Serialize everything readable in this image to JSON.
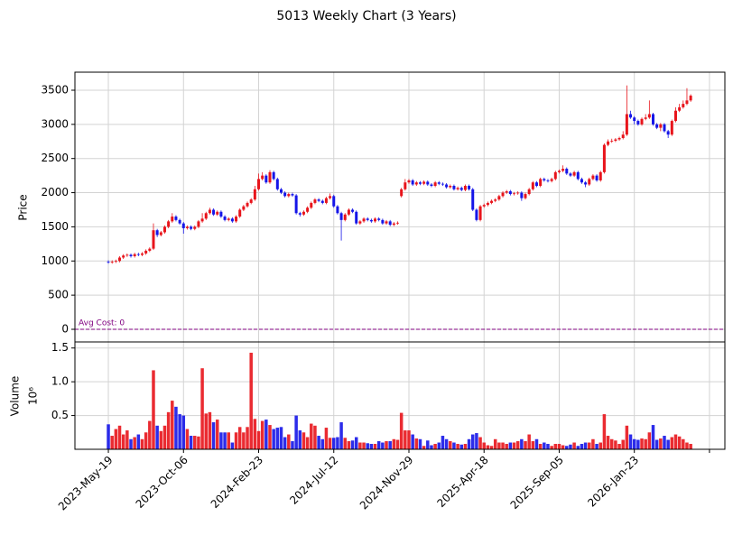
{
  "chart_data": {
    "type": "candlestick",
    "title": "5013 Weekly Chart (3 Years)",
    "ylabel": "Price",
    "up_color": "#e8141b",
    "down_color": "#1515e8",
    "grid": true,
    "xlim": [
      -8.9,
      164.1
    ],
    "xticks": [
      {
        "value": 0,
        "label": "2023-May-19"
      },
      {
        "value": 20,
        "label": "2023-Oct-06"
      },
      {
        "value": 40,
        "label": "2024-Feb-23"
      },
      {
        "value": 60,
        "label": "2024-Jul-12"
      },
      {
        "value": 80,
        "label": "2024-Nov-29"
      },
      {
        "value": 100,
        "label": "2025-Apr-18"
      },
      {
        "value": 120,
        "label": "2025-Sep-05"
      },
      {
        "value": 140,
        "label": "2026-Jan-23"
      },
      {
        "value": 160,
        "label": null
      }
    ],
    "ylim": [
      -185,
      3764
    ],
    "yticks": [
      0,
      500,
      1000,
      1500,
      2000,
      2500,
      3000,
      3500
    ],
    "hline": {
      "value": 0,
      "label": "Avg Cost: 0",
      "color": "#800080"
    },
    "open": [
      990,
      980,
      990,
      1000,
      1050,
      1080,
      1090,
      1070,
      1100,
      1090,
      1110,
      1150,
      1180,
      1450,
      1380,
      1420,
      1500,
      1580,
      1650,
      1600,
      1550,
      1480,
      1500,
      1470,
      1500,
      1580,
      1620,
      1700,
      1750,
      1680,
      1720,
      1650,
      1600,
      1620,
      1580,
      1650,
      1750,
      1800,
      1850,
      1900,
      2050,
      2200,
      2250,
      2150,
      2300,
      2200,
      2050,
      2000,
      1950,
      1980,
      1960,
      1700,
      1680,
      1720,
      1780,
      1850,
      1900,
      1880,
      1850,
      1920,
      1950,
      1800,
      1700,
      1600,
      1680,
      1750,
      1720,
      1550,
      1580,
      1620,
      1600,
      1580,
      1620,
      1600,
      1550,
      1580,
      1530,
      1550,
      1950,
      2050,
      2150,
      2180,
      2120,
      2150,
      2130,
      2160,
      2120,
      2100,
      2150,
      2130,
      2120,
      2080,
      2100,
      2050,
      2070,
      2040,
      2100,
      2050,
      1750,
      1600,
      1800,
      1820,
      1850,
      1880,
      1900,
      1950,
      2000,
      2020,
      1980,
      1990,
      2000,
      1920,
      1980,
      2050,
      2150,
      2100,
      2200,
      2180,
      2170,
      2200,
      2300,
      2320,
      2350,
      2280,
      2250,
      2300,
      2200,
      2150,
      2120,
      2200,
      2250,
      2180,
      2300,
      2700,
      2750,
      2760,
      2780,
      2800,
      2850,
      3150,
      3100,
      3050,
      3000,
      3080,
      3100,
      3150,
      3000,
      2950,
      3000,
      2900,
      2850,
      3050,
      3200,
      3250,
      3300,
      3350
    ],
    "high": [
      1010,
      1010,
      1020,
      1070,
      1100,
      1110,
      1110,
      1120,
      1120,
      1130,
      1170,
      1200,
      1550,
      1470,
      1440,
      1520,
      1600,
      1700,
      1670,
      1620,
      1570,
      1520,
      1520,
      1520,
      1600,
      1700,
      1720,
      1780,
      1770,
      1740,
      1740,
      1670,
      1640,
      1640,
      1670,
      1770,
      1820,
      1870,
      1920,
      2100,
      2280,
      2300,
      2270,
      2330,
      2320,
      2220,
      2070,
      2020,
      2000,
      2000,
      1980,
      1720,
      1740,
      1800,
      1870,
      1920,
      1920,
      1900,
      1940,
      1990,
      1970,
      1820,
      1720,
      1700,
      1770,
      1770,
      1740,
      1600,
      1640,
      1640,
      1620,
      1640,
      1640,
      1620,
      1600,
      1600,
      1570,
      1580,
      2070,
      2200,
      2200,
      2200,
      2170,
      2170,
      2180,
      2180,
      2140,
      2170,
      2170,
      2150,
      2140,
      2120,
      2120,
      2090,
      2090,
      2120,
      2120,
      2070,
      1770,
      1820,
      1840,
      1870,
      1900,
      1920,
      1970,
      2020,
      2040,
      2040,
      2010,
      2020,
      2020,
      2000,
      2070,
      2170,
      2170,
      2220,
      2220,
      2200,
      2220,
      2320,
      2340,
      2400,
      2370,
      2300,
      2320,
      2320,
      2220,
      2170,
      2220,
      2270,
      2270,
      2320,
      2720,
      2780,
      2790,
      2800,
      2820,
      2900,
      3570,
      3200,
      3120,
      3070,
      3100,
      3150,
      3350,
      3170,
      3020,
      3020,
      3020,
      2920,
      3070,
      3250,
      3300,
      3350,
      3530,
      3440
    ],
    "low": [
      960,
      960,
      970,
      980,
      1030,
      1060,
      1050,
      1050,
      1070,
      1070,
      1090,
      1130,
      1160,
      1350,
      1360,
      1400,
      1480,
      1560,
      1580,
      1530,
      1400,
      1460,
      1450,
      1450,
      1480,
      1560,
      1600,
      1680,
      1660,
      1660,
      1630,
      1580,
      1580,
      1560,
      1560,
      1630,
      1730,
      1780,
      1830,
      1880,
      2030,
      2180,
      2130,
      2130,
      2180,
      2030,
      1980,
      1930,
      1930,
      1940,
      1680,
      1650,
      1660,
      1700,
      1760,
      1830,
      1860,
      1830,
      1830,
      1900,
      1780,
      1680,
      1300,
      1580,
      1660,
      1700,
      1530,
      1530,
      1560,
      1580,
      1560,
      1560,
      1580,
      1530,
      1530,
      1510,
      1510,
      1530,
      1930,
      2030,
      2130,
      2100,
      2100,
      2110,
      2110,
      2100,
      2080,
      2080,
      2110,
      2100,
      2060,
      2060,
      2030,
      2030,
      2020,
      2020,
      2030,
      1730,
      1580,
      1580,
      1780,
      1800,
      1830,
      1860,
      1880,
      1930,
      1980,
      1960,
      1960,
      1970,
      1880,
      1900,
      1960,
      2030,
      2080,
      2080,
      2160,
      2150,
      2150,
      2180,
      2280,
      2300,
      2260,
      2230,
      2230,
      2180,
      2130,
      2080,
      2100,
      2180,
      2160,
      2160,
      2280,
      2680,
      2730,
      2740,
      2760,
      2780,
      2830,
      3080,
      3000,
      2980,
      2980,
      3060,
      3080,
      2980,
      2930,
      2900,
      2880,
      2800,
      2830,
      3030,
      3180,
      3230,
      3280,
      3330
    ],
    "close": [
      980,
      990,
      1000,
      1050,
      1080,
      1090,
      1070,
      1100,
      1090,
      1110,
      1150,
      1180,
      1450,
      1380,
      1420,
      1500,
      1580,
      1650,
      1600,
      1550,
      1480,
      1500,
      1470,
      1500,
      1580,
      1620,
      1700,
      1750,
      1680,
      1720,
      1650,
      1600,
      1620,
      1580,
      1650,
      1750,
      1800,
      1850,
      1900,
      2050,
      2200,
      2250,
      2150,
      2300,
      2200,
      2050,
      2000,
      1950,
      1980,
      1960,
      1700,
      1680,
      1720,
      1780,
      1850,
      1900,
      1880,
      1850,
      1920,
      1950,
      1800,
      1700,
      1600,
      1680,
      1750,
      1720,
      1550,
      1580,
      1620,
      1600,
      1580,
      1620,
      1600,
      1550,
      1580,
      1530,
      1550,
      1560,
      2050,
      2150,
      2180,
      2120,
      2150,
      2130,
      2160,
      2120,
      2100,
      2150,
      2130,
      2120,
      2080,
      2100,
      2050,
      2070,
      2040,
      2100,
      2050,
      1750,
      1600,
      1800,
      1820,
      1850,
      1880,
      1900,
      1950,
      2000,
      2020,
      1980,
      1990,
      2000,
      1920,
      1980,
      2050,
      2150,
      2100,
      2200,
      2180,
      2170,
      2200,
      2300,
      2320,
      2350,
      2280,
      2250,
      2300,
      2200,
      2150,
      2120,
      2200,
      2250,
      2180,
      2300,
      2700,
      2750,
      2760,
      2780,
      2800,
      2850,
      3150,
      3100,
      3050,
      3000,
      3080,
      3100,
      3150,
      3000,
      2950,
      3000,
      2900,
      2850,
      3050,
      3200,
      3250,
      3300,
      3350,
      3420
    ],
    "volume": {
      "ylabel": "Volume",
      "offset_label": "10⁶",
      "ylim": [
        0,
        1.59
      ],
      "yticks": [
        0.5,
        {
          "value": 1,
          "label": "1.0"
        },
        1.5
      ],
      "values": [
        0.37,
        0.2,
        0.3,
        0.35,
        0.22,
        0.28,
        0.15,
        0.18,
        0.22,
        0.15,
        0.25,
        0.42,
        1.17,
        0.35,
        0.27,
        0.35,
        0.55,
        0.72,
        0.63,
        0.52,
        0.5,
        0.3,
        0.2,
        0.2,
        0.19,
        1.2,
        0.53,
        0.55,
        0.4,
        0.44,
        0.25,
        0.25,
        0.25,
        0.1,
        0.25,
        0.33,
        0.25,
        0.33,
        1.43,
        0.45,
        0.27,
        0.42,
        0.44,
        0.36,
        0.3,
        0.32,
        0.33,
        0.18,
        0.22,
        0.12,
        0.5,
        0.28,
        0.25,
        0.18,
        0.38,
        0.35,
        0.2,
        0.15,
        0.32,
        0.17,
        0.17,
        0.18,
        0.4,
        0.17,
        0.12,
        0.13,
        0.18,
        0.1,
        0.1,
        0.09,
        0.08,
        0.08,
        0.12,
        0.1,
        0.12,
        0.12,
        0.15,
        0.14,
        0.54,
        0.28,
        0.28,
        0.22,
        0.16,
        0.15,
        0.05,
        0.13,
        0.06,
        0.08,
        0.1,
        0.2,
        0.15,
        0.12,
        0.1,
        0.08,
        0.07,
        0.08,
        0.15,
        0.22,
        0.24,
        0.18,
        0.1,
        0.06,
        0.05,
        0.15,
        0.1,
        0.1,
        0.08,
        0.1,
        0.1,
        0.12,
        0.15,
        0.12,
        0.22,
        0.12,
        0.15,
        0.08,
        0.1,
        0.08,
        0.05,
        0.08,
        0.08,
        0.06,
        0.05,
        0.07,
        0.1,
        0.05,
        0.08,
        0.1,
        0.1,
        0.15,
        0.08,
        0.1,
        0.52,
        0.2,
        0.15,
        0.13,
        0.08,
        0.14,
        0.35,
        0.22,
        0.15,
        0.14,
        0.16,
        0.15,
        0.25,
        0.36,
        0.14,
        0.16,
        0.2,
        0.14,
        0.18,
        0.22,
        0.19,
        0.15,
        0.1,
        0.08
      ]
    }
  }
}
